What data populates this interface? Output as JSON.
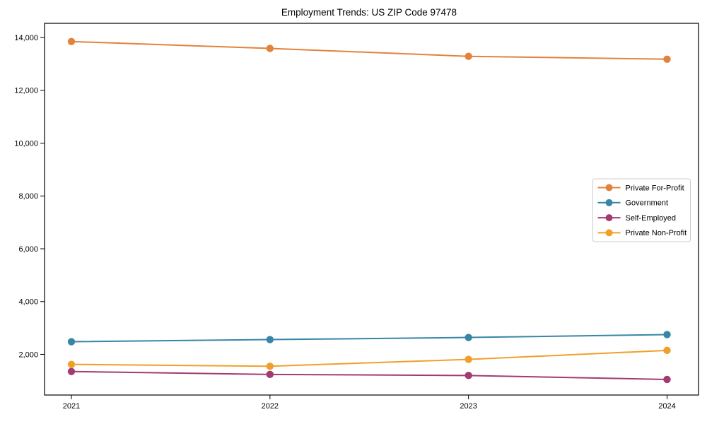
{
  "chart_data": {
    "type": "line",
    "title": "Employment Trends: US ZIP Code 97478",
    "x": [
      2021,
      2022,
      2023,
      2024
    ],
    "x_tick_labels": [
      "2021",
      "2022",
      "2023",
      "2024"
    ],
    "y_ticks": [
      2000,
      4000,
      6000,
      8000,
      10000,
      12000,
      14000
    ],
    "y_tick_labels": [
      "2,000",
      "4,000",
      "6,000",
      "8,000",
      "10,000",
      "12,000",
      "14,000"
    ],
    "ylim": [
      460,
      14540
    ],
    "xlabel": "",
    "ylabel": "",
    "grid": false,
    "legend_position": "center right",
    "series": [
      {
        "name": "Private For-Profit",
        "color": "#E2823D",
        "values": [
          13850,
          13590,
          13290,
          13180
        ]
      },
      {
        "name": "Government",
        "color": "#3786A5",
        "values": [
          2480,
          2560,
          2640,
          2750
        ]
      },
      {
        "name": "Self-Employed",
        "color": "#A23B72",
        "values": [
          1350,
          1240,
          1200,
          1050
        ]
      },
      {
        "name": "Private Non-Profit",
        "color": "#F0A02A",
        "values": [
          1620,
          1550,
          1810,
          2150
        ]
      }
    ],
    "colors": {
      "axes": "#000000",
      "legend_border": "#cccccc",
      "background": "#ffffff"
    }
  }
}
